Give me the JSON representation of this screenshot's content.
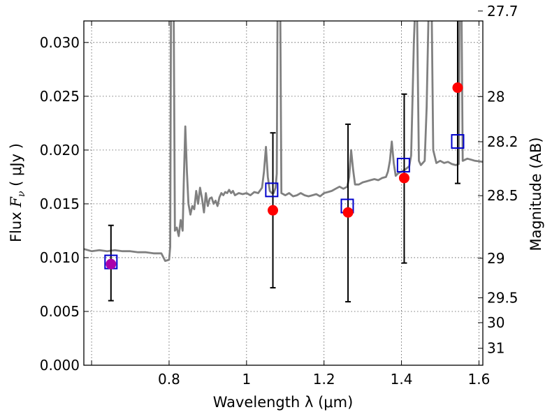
{
  "chart_data": {
    "type": "scatter",
    "title": "",
    "xlabel": "Wavelength  λ (μm)",
    "ylabel_prefix": "Flux ",
    "ylabel_symbol": "F",
    "ylabel_subscript": "ν",
    "ylabel_unit": " ( μJy )",
    "y2label": "Magnitude (AB)",
    "xlim": [
      0.58,
      1.61
    ],
    "ylim": [
      0.0,
      0.032
    ],
    "grid": true,
    "x_ticks": [
      0.6,
      0.8,
      1.0,
      1.2,
      1.4,
      1.6
    ],
    "x_tick_labels": [
      "",
      "0.8",
      "1",
      "1.2",
      "1.4",
      "1.6"
    ],
    "y_ticks": [
      0.0,
      0.005,
      0.01,
      0.015,
      0.02,
      0.025,
      0.03
    ],
    "y_tick_labels": [
      "0.000",
      "0.005",
      "0.010",
      "0.015",
      "0.020",
      "0.025",
      "0.030"
    ],
    "mag_ticks": [
      27.7,
      28,
      28.2,
      28.5,
      29,
      29.5,
      30,
      31
    ],
    "mag_tick_labels": [
      "27.7",
      "28",
      "28.2",
      "28.5",
      "29",
      "29.5",
      "30",
      "31"
    ],
    "model_spectrum": {
      "color": "#808080",
      "points": [
        [
          0.58,
          0.0108
        ],
        [
          0.6,
          0.0106
        ],
        [
          0.62,
          0.0107
        ],
        [
          0.64,
          0.0106
        ],
        [
          0.66,
          0.0107
        ],
        [
          0.68,
          0.0106
        ],
        [
          0.7,
          0.0106
        ],
        [
          0.72,
          0.0105
        ],
        [
          0.74,
          0.0105
        ],
        [
          0.76,
          0.0104
        ],
        [
          0.78,
          0.0104
        ],
        [
          0.79,
          0.0097
        ],
        [
          0.8,
          0.0098
        ],
        [
          0.803,
          0.011
        ],
        [
          0.805,
          0.033
        ],
        [
          0.812,
          0.033
        ],
        [
          0.815,
          0.0125
        ],
        [
          0.82,
          0.0128
        ],
        [
          0.825,
          0.012
        ],
        [
          0.83,
          0.0135
        ],
        [
          0.835,
          0.0125
        ],
        [
          0.838,
          0.017
        ],
        [
          0.842,
          0.0222
        ],
        [
          0.846,
          0.018
        ],
        [
          0.85,
          0.015
        ],
        [
          0.855,
          0.014
        ],
        [
          0.86,
          0.0148
        ],
        [
          0.865,
          0.0145
        ],
        [
          0.87,
          0.0162
        ],
        [
          0.875,
          0.015
        ],
        [
          0.88,
          0.0165
        ],
        [
          0.885,
          0.0155
        ],
        [
          0.89,
          0.0142
        ],
        [
          0.895,
          0.016
        ],
        [
          0.9,
          0.0148
        ],
        [
          0.905,
          0.0155
        ],
        [
          0.91,
          0.0156
        ],
        [
          0.915,
          0.015
        ],
        [
          0.92,
          0.0153
        ],
        [
          0.925,
          0.0148
        ],
        [
          0.93,
          0.0156
        ],
        [
          0.935,
          0.016
        ],
        [
          0.94,
          0.0158
        ],
        [
          0.945,
          0.0161
        ],
        [
          0.95,
          0.016
        ],
        [
          0.955,
          0.0163
        ],
        [
          0.96,
          0.016
        ],
        [
          0.965,
          0.0162
        ],
        [
          0.97,
          0.0158
        ],
        [
          0.98,
          0.016
        ],
        [
          0.99,
          0.0159
        ],
        [
          1.0,
          0.016
        ],
        [
          1.01,
          0.0158
        ],
        [
          1.02,
          0.0161
        ],
        [
          1.03,
          0.016
        ],
        [
          1.04,
          0.0165
        ],
        [
          1.045,
          0.018
        ],
        [
          1.05,
          0.0203
        ],
        [
          1.055,
          0.0175
        ],
        [
          1.06,
          0.0162
        ],
        [
          1.065,
          0.016
        ],
        [
          1.07,
          0.016
        ],
        [
          1.075,
          0.0165
        ],
        [
          1.078,
          0.0178
        ],
        [
          1.08,
          0.033
        ],
        [
          1.087,
          0.033
        ],
        [
          1.09,
          0.016
        ],
        [
          1.1,
          0.0158
        ],
        [
          1.11,
          0.016
        ],
        [
          1.12,
          0.0157
        ],
        [
          1.13,
          0.0158
        ],
        [
          1.14,
          0.016
        ],
        [
          1.15,
          0.0158
        ],
        [
          1.16,
          0.0157
        ],
        [
          1.17,
          0.0158
        ],
        [
          1.18,
          0.0159
        ],
        [
          1.19,
          0.0157
        ],
        [
          1.2,
          0.016
        ],
        [
          1.21,
          0.0161
        ],
        [
          1.22,
          0.0162
        ],
        [
          1.23,
          0.0164
        ],
        [
          1.24,
          0.0166
        ],
        [
          1.25,
          0.0164
        ],
        [
          1.26,
          0.0166
        ],
        [
          1.265,
          0.0175
        ],
        [
          1.27,
          0.02
        ],
        [
          1.275,
          0.0182
        ],
        [
          1.28,
          0.0168
        ],
        [
          1.29,
          0.0168
        ],
        [
          1.3,
          0.017
        ],
        [
          1.31,
          0.0171
        ],
        [
          1.32,
          0.0172
        ],
        [
          1.33,
          0.0173
        ],
        [
          1.34,
          0.0172
        ],
        [
          1.35,
          0.0174
        ],
        [
          1.36,
          0.0175
        ],
        [
          1.365,
          0.018
        ],
        [
          1.37,
          0.019
        ],
        [
          1.375,
          0.0208
        ],
        [
          1.38,
          0.0188
        ],
        [
          1.385,
          0.0176
        ],
        [
          1.39,
          0.0178
        ],
        [
          1.4,
          0.018
        ],
        [
          1.41,
          0.0182
        ],
        [
          1.42,
          0.0185
        ],
        [
          1.425,
          0.0195
        ],
        [
          1.428,
          0.024
        ],
        [
          1.432,
          0.03
        ],
        [
          1.435,
          0.033
        ],
        [
          1.44,
          0.033
        ],
        [
          1.445,
          0.019
        ],
        [
          1.45,
          0.0186
        ],
        [
          1.46,
          0.019
        ],
        [
          1.465,
          0.024
        ],
        [
          1.47,
          0.033
        ],
        [
          1.478,
          0.033
        ],
        [
          1.482,
          0.02
        ],
        [
          1.49,
          0.0188
        ],
        [
          1.5,
          0.019
        ],
        [
          1.51,
          0.0188
        ],
        [
          1.52,
          0.0189
        ],
        [
          1.53,
          0.0187
        ],
        [
          1.54,
          0.0186
        ],
        [
          1.548,
          0.0187
        ],
        [
          1.55,
          0.033
        ],
        [
          1.555,
          0.033
        ],
        [
          1.558,
          0.019
        ],
        [
          1.57,
          0.0192
        ],
        [
          1.58,
          0.0191
        ],
        [
          1.59,
          0.019
        ],
        [
          1.61,
          0.0189
        ]
      ]
    },
    "model_points": {
      "color": "#0000cc",
      "marker": "open-square",
      "points": [
        [
          0.65,
          0.0096
        ],
        [
          1.065,
          0.0163
        ],
        [
          1.26,
          0.0148
        ],
        [
          1.405,
          0.0186
        ],
        [
          1.545,
          0.0208
        ]
      ]
    },
    "observed": {
      "color": "#ff0000",
      "marker": "filled-circle",
      "points": [
        {
          "x": 0.65,
          "y": 0.0094,
          "yerr_low": 0.006,
          "yerr_high": 0.013,
          "color": "#aa00aa"
        },
        {
          "x": 1.068,
          "y": 0.0144,
          "yerr_low": 0.0072,
          "yerr_high": 0.0216
        },
        {
          "x": 1.262,
          "y": 0.0142,
          "yerr_low": 0.0059,
          "yerr_high": 0.0224
        },
        {
          "x": 1.407,
          "y": 0.0174,
          "yerr_low": 0.0095,
          "yerr_high": 0.0252
        },
        {
          "x": 1.545,
          "y": 0.0258,
          "yerr_low": 0.0169,
          "yerr_high": 0.034
        }
      ]
    }
  }
}
